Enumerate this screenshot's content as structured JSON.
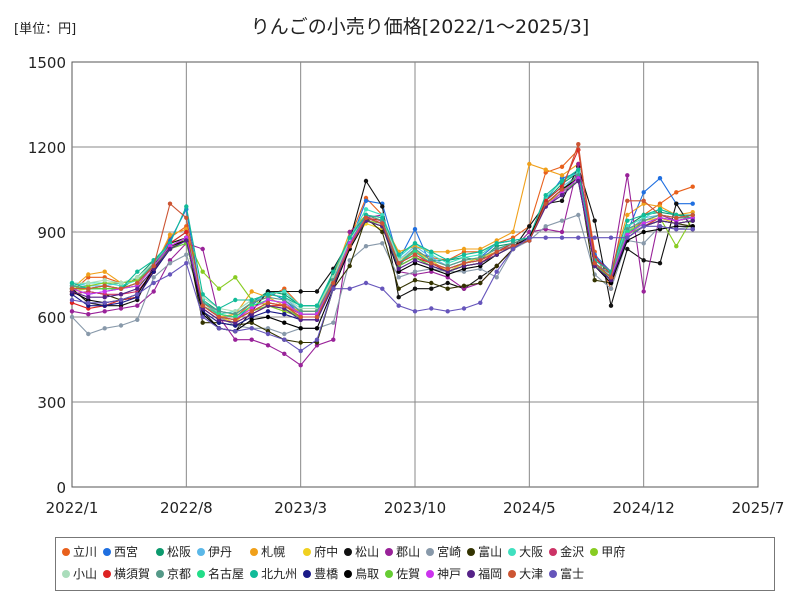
{
  "unit_label": "[単位：円]",
  "chart_data": {
    "type": "line",
    "title": "りんごの小売り価格[2022/1～2025/3]",
    "xlabel": "",
    "ylabel": "",
    "ylim": [
      0,
      1500
    ],
    "yticks": [
      0,
      300,
      600,
      900,
      1200,
      1500
    ],
    "xticks": [
      "2022/1",
      "2022/8",
      "2023/3",
      "2023/10",
      "2024/5",
      "2024/12",
      "2025/7"
    ],
    "grid": true,
    "legend_position": "bottom",
    "x": [
      "2022/1",
      "2022/2",
      "2022/3",
      "2022/4",
      "2022/5",
      "2022/6",
      "2022/7",
      "2022/8",
      "2022/9",
      "2022/10",
      "2022/11",
      "2022/12",
      "2023/1",
      "2023/2",
      "2023/3",
      "2023/4",
      "2023/5",
      "2023/6",
      "2023/7",
      "2023/8",
      "2023/9",
      "2023/10",
      "2023/11",
      "2023/12",
      "2024/1",
      "2024/2",
      "2024/3",
      "2024/4",
      "2024/5",
      "2024/6",
      "2024/7",
      "2024/8",
      "2024/9",
      "2024/10",
      "2024/11",
      "2024/12",
      "2025/1",
      "2025/2",
      "2025/3"
    ],
    "series": [
      {
        "name": "立川",
        "color": "#e8601c",
        "values": [
          690,
          740,
          740,
          720,
          730,
          780,
          880,
          920,
          650,
          610,
          600,
          650,
          670,
          700,
          640,
          640,
          750,
          880,
          1020,
          960,
          790,
          830,
          810,
          800,
          830,
          830,
          860,
          880,
          920,
          1110,
          1130,
          1190,
          830,
          700,
          920,
          960,
          1000,
          1040,
          1060
        ]
      },
      {
        "name": "西宮",
        "color": "#1f6fe0",
        "values": [
          700,
          680,
          690,
          700,
          720,
          790,
          870,
          980,
          640,
          600,
          590,
          640,
          690,
          660,
          610,
          610,
          720,
          860,
          1010,
          1000,
          800,
          910,
          780,
          760,
          790,
          810,
          860,
          870,
          880,
          1010,
          1090,
          1110,
          820,
          760,
          900,
          1040,
          1090,
          1000,
          1000
        ]
      },
      {
        "name": "松阪",
        "color": "#0d9a6e",
        "values": [
          700,
          700,
          710,
          700,
          740,
          800,
          850,
          880,
          660,
          620,
          610,
          650,
          690,
          680,
          640,
          640,
          750,
          880,
          960,
          940,
          780,
          840,
          800,
          800,
          810,
          800,
          850,
          860,
          880,
          1010,
          1070,
          1110,
          790,
          730,
          920,
          960,
          970,
          960,
          950
        ]
      },
      {
        "name": "伊丹",
        "color": "#5bb8e8",
        "values": [
          720,
          710,
          710,
          720,
          730,
          780,
          850,
          870,
          650,
          620,
          610,
          650,
          680,
          670,
          620,
          620,
          730,
          870,
          960,
          950,
          800,
          850,
          810,
          780,
          800,
          810,
          840,
          850,
          870,
          1010,
          1060,
          1100,
          800,
          760,
          900,
          950,
          960,
          950,
          960
        ]
      },
      {
        "name": "札幌",
        "color": "#f0a01a",
        "values": [
          700,
          750,
          760,
          720,
          730,
          770,
          890,
          910,
          640,
          600,
          610,
          690,
          670,
          640,
          620,
          620,
          740,
          900,
          960,
          940,
          830,
          850,
          830,
          830,
          840,
          840,
          870,
          900,
          1140,
          1120,
          1100,
          1140,
          810,
          760,
          960,
          1000,
          990,
          960,
          970
        ]
      },
      {
        "name": "府中",
        "color": "#f0d020",
        "values": [
          690,
          700,
          710,
          700,
          710,
          760,
          860,
          880,
          640,
          600,
          580,
          640,
          650,
          640,
          610,
          610,
          720,
          860,
          930,
          910,
          800,
          830,
          800,
          760,
          790,
          810,
          830,
          860,
          880,
          1000,
          1040,
          1100,
          790,
          740,
          900,
          940,
          950,
          930,
          940
        ]
      },
      {
        "name": "松山",
        "color": "#111111",
        "values": [
          700,
          650,
          640,
          640,
          660,
          780,
          860,
          880,
          620,
          560,
          550,
          620,
          690,
          690,
          690,
          690,
          770,
          870,
          1080,
          990,
          670,
          700,
          700,
          720,
          700,
          740,
          780,
          840,
          920,
          1000,
          1010,
          1130,
          940,
          640,
          840,
          800,
          790,
          1000,
          910
        ]
      },
      {
        "name": "郡山",
        "color": "#992299",
        "values": [
          620,
          610,
          620,
          630,
          640,
          690,
          800,
          860,
          840,
          600,
          520,
          520,
          500,
          470,
          430,
          500,
          520,
          900,
          950,
          960,
          760,
          750,
          760,
          740,
          700,
          720,
          780,
          840,
          900,
          910,
          900,
          1140,
          810,
          760,
          1100,
          690,
          960,
          940,
          950
        ]
      },
      {
        "name": "宮崎",
        "color": "#8899aa",
        "values": [
          600,
          540,
          560,
          570,
          590,
          740,
          790,
          820,
          660,
          600,
          570,
          560,
          560,
          540,
          560,
          560,
          580,
          800,
          850,
          860,
          740,
          760,
          770,
          760,
          760,
          770,
          740,
          840,
          870,
          920,
          940,
          960,
          750,
          700,
          870,
          860,
          920,
          910,
          920
        ]
      },
      {
        "name": "富山",
        "color": "#333300",
        "values": [
          680,
          690,
          680,
          660,
          670,
          760,
          840,
          880,
          580,
          580,
          570,
          580,
          550,
          520,
          510,
          510,
          700,
          780,
          950,
          900,
          700,
          730,
          720,
          700,
          710,
          720,
          780,
          840,
          880,
          1000,
          1050,
          1100,
          730,
          720,
          880,
          920,
          940,
          930,
          920
        ]
      },
      {
        "name": "大阪",
        "color": "#40e0c0",
        "values": [
          710,
          720,
          720,
          710,
          730,
          790,
          860,
          900,
          660,
          610,
          620,
          660,
          680,
          690,
          640,
          640,
          740,
          880,
          980,
          960,
          810,
          860,
          820,
          790,
          810,
          820,
          860,
          870,
          880,
          1020,
          1080,
          1110,
          800,
          760,
          920,
          950,
          980,
          960,
          960
        ]
      },
      {
        "name": "金沢",
        "color": "#cc3366",
        "values": [
          680,
          690,
          680,
          680,
          690,
          760,
          850,
          870,
          640,
          600,
          590,
          620,
          650,
          640,
          610,
          610,
          730,
          860,
          950,
          930,
          790,
          830,
          790,
          770,
          790,
          800,
          830,
          850,
          870,
          990,
          1040,
          1090,
          790,
          740,
          890,
          940,
          960,
          950,
          950
        ]
      },
      {
        "name": "甲府",
        "color": "#88cc22",
        "values": [
          700,
          710,
          720,
          720,
          730,
          780,
          840,
          880,
          760,
          700,
          740,
          660,
          640,
          620,
          600,
          600,
          710,
          860,
          940,
          930,
          790,
          820,
          790,
          770,
          790,
          800,
          830,
          850,
          870,
          990,
          1040,
          1090,
          780,
          740,
          900,
          930,
          950,
          850,
          950
        ]
      },
      {
        "name": "小山",
        "color": "#aaddbb",
        "values": [
          720,
          720,
          730,
          720,
          740,
          790,
          850,
          880,
          670,
          630,
          620,
          660,
          680,
          670,
          630,
          630,
          740,
          870,
          960,
          950,
          800,
          840,
          800,
          780,
          800,
          810,
          840,
          860,
          880,
          1000,
          1050,
          1100,
          790,
          750,
          910,
          940,
          960,
          950,
          960
        ]
      },
      {
        "name": "横須賀",
        "color": "#dd2222",
        "values": [
          650,
          630,
          640,
          660,
          670,
          760,
          860,
          900,
          630,
          590,
          580,
          610,
          640,
          640,
          600,
          600,
          720,
          850,
          950,
          940,
          780,
          810,
          790,
          760,
          780,
          790,
          830,
          860,
          880,
          1010,
          1060,
          1190,
          810,
          750,
          880,
          920,
          950,
          940,
          950
        ]
      },
      {
        "name": "京都",
        "color": "#559988",
        "values": [
          710,
          700,
          710,
          700,
          720,
          790,
          850,
          880,
          650,
          620,
          610,
          650,
          670,
          660,
          620,
          620,
          730,
          860,
          960,
          940,
          790,
          840,
          800,
          780,
          800,
          810,
          840,
          860,
          880,
          1000,
          1050,
          1100,
          790,
          750,
          910,
          940,
          960,
          950,
          950
        ]
      },
      {
        "name": "名古屋",
        "color": "#22dd88",
        "values": [
          700,
          700,
          700,
          700,
          710,
          780,
          840,
          870,
          640,
          610,
          600,
          640,
          660,
          650,
          610,
          610,
          720,
          860,
          950,
          930,
          790,
          830,
          790,
          770,
          790,
          800,
          830,
          850,
          870,
          990,
          1040,
          1090,
          790,
          740,
          900,
          930,
          950,
          940,
          950
        ]
      },
      {
        "name": "北九州",
        "color": "#11bb99",
        "values": [
          720,
          700,
          700,
          700,
          760,
          800,
          860,
          990,
          680,
          630,
          660,
          660,
          680,
          670,
          640,
          640,
          760,
          880,
          960,
          950,
          820,
          860,
          830,
          800,
          820,
          830,
          860,
          870,
          880,
          1030,
          1080,
          1120,
          800,
          760,
          940,
          960,
          980,
          960,
          960
        ]
      },
      {
        "name": "豊橋",
        "color": "#1a1a88",
        "values": [
          680,
          640,
          640,
          650,
          670,
          760,
          840,
          870,
          620,
          580,
          570,
          600,
          620,
          610,
          590,
          590,
          710,
          860,
          950,
          930,
          780,
          810,
          780,
          760,
          780,
          790,
          820,
          850,
          870,
          990,
          1040,
          1080,
          780,
          730,
          880,
          920,
          940,
          930,
          940
        ]
      },
      {
        "name": "鳥取",
        "color": "#000000",
        "values": [
          690,
          660,
          650,
          660,
          680,
          770,
          850,
          870,
          610,
          560,
          550,
          590,
          600,
          580,
          560,
          560,
          700,
          840,
          940,
          920,
          760,
          790,
          770,
          750,
          770,
          780,
          820,
          850,
          880,
          1000,
          1050,
          1090,
          780,
          720,
          870,
          900,
          910,
          920,
          920
        ]
      },
      {
        "name": "佐賀",
        "color": "#66cc33",
        "values": [
          700,
          700,
          700,
          700,
          720,
          780,
          840,
          860,
          640,
          600,
          590,
          620,
          640,
          630,
          600,
          600,
          720,
          850,
          940,
          920,
          780,
          810,
          780,
          760,
          780,
          790,
          820,
          850,
          870,
          990,
          1040,
          1080,
          780,
          740,
          890,
          920,
          940,
          930,
          940
        ]
      },
      {
        "name": "神戸",
        "color": "#cc33ee",
        "values": [
          700,
          680,
          690,
          700,
          710,
          780,
          850,
          880,
          640,
          600,
          590,
          630,
          660,
          650,
          610,
          610,
          720,
          860,
          950,
          930,
          790,
          820,
          790,
          770,
          790,
          800,
          830,
          850,
          870,
          990,
          1040,
          1090,
          790,
          740,
          890,
          930,
          950,
          940,
          950
        ]
      },
      {
        "name": "福岡",
        "color": "#552288",
        "values": [
          690,
          670,
          670,
          680,
          700,
          770,
          840,
          870,
          630,
          590,
          580,
          610,
          640,
          630,
          590,
          590,
          710,
          850,
          940,
          920,
          770,
          800,
          780,
          760,
          780,
          790,
          820,
          850,
          870,
          990,
          1030,
          1080,
          780,
          730,
          880,
          920,
          940,
          930,
          940
        ]
      },
      {
        "name": "大津",
        "color": "#cc5533",
        "values": [
          700,
          700,
          710,
          700,
          720,
          780,
          1000,
          950,
          640,
          600,
          590,
          620,
          650,
          640,
          600,
          600,
          720,
          850,
          950,
          930,
          790,
          820,
          790,
          770,
          790,
          800,
          830,
          850,
          870,
          1000,
          1050,
          1210,
          790,
          740,
          1010,
          1010,
          960,
          950,
          960
        ]
      },
      {
        "name": "富士",
        "color": "#6655bb",
        "values": [
          660,
          650,
          650,
          660,
          680,
          720,
          750,
          790,
          600,
          560,
          550,
          560,
          540,
          520,
          480,
          520,
          700,
          700,
          720,
          700,
          640,
          620,
          630,
          620,
          630,
          650,
          760,
          840,
          880,
          880,
          880,
          880,
          880,
          880,
          880,
          920,
          920,
          910,
          910
        ]
      }
    ]
  }
}
